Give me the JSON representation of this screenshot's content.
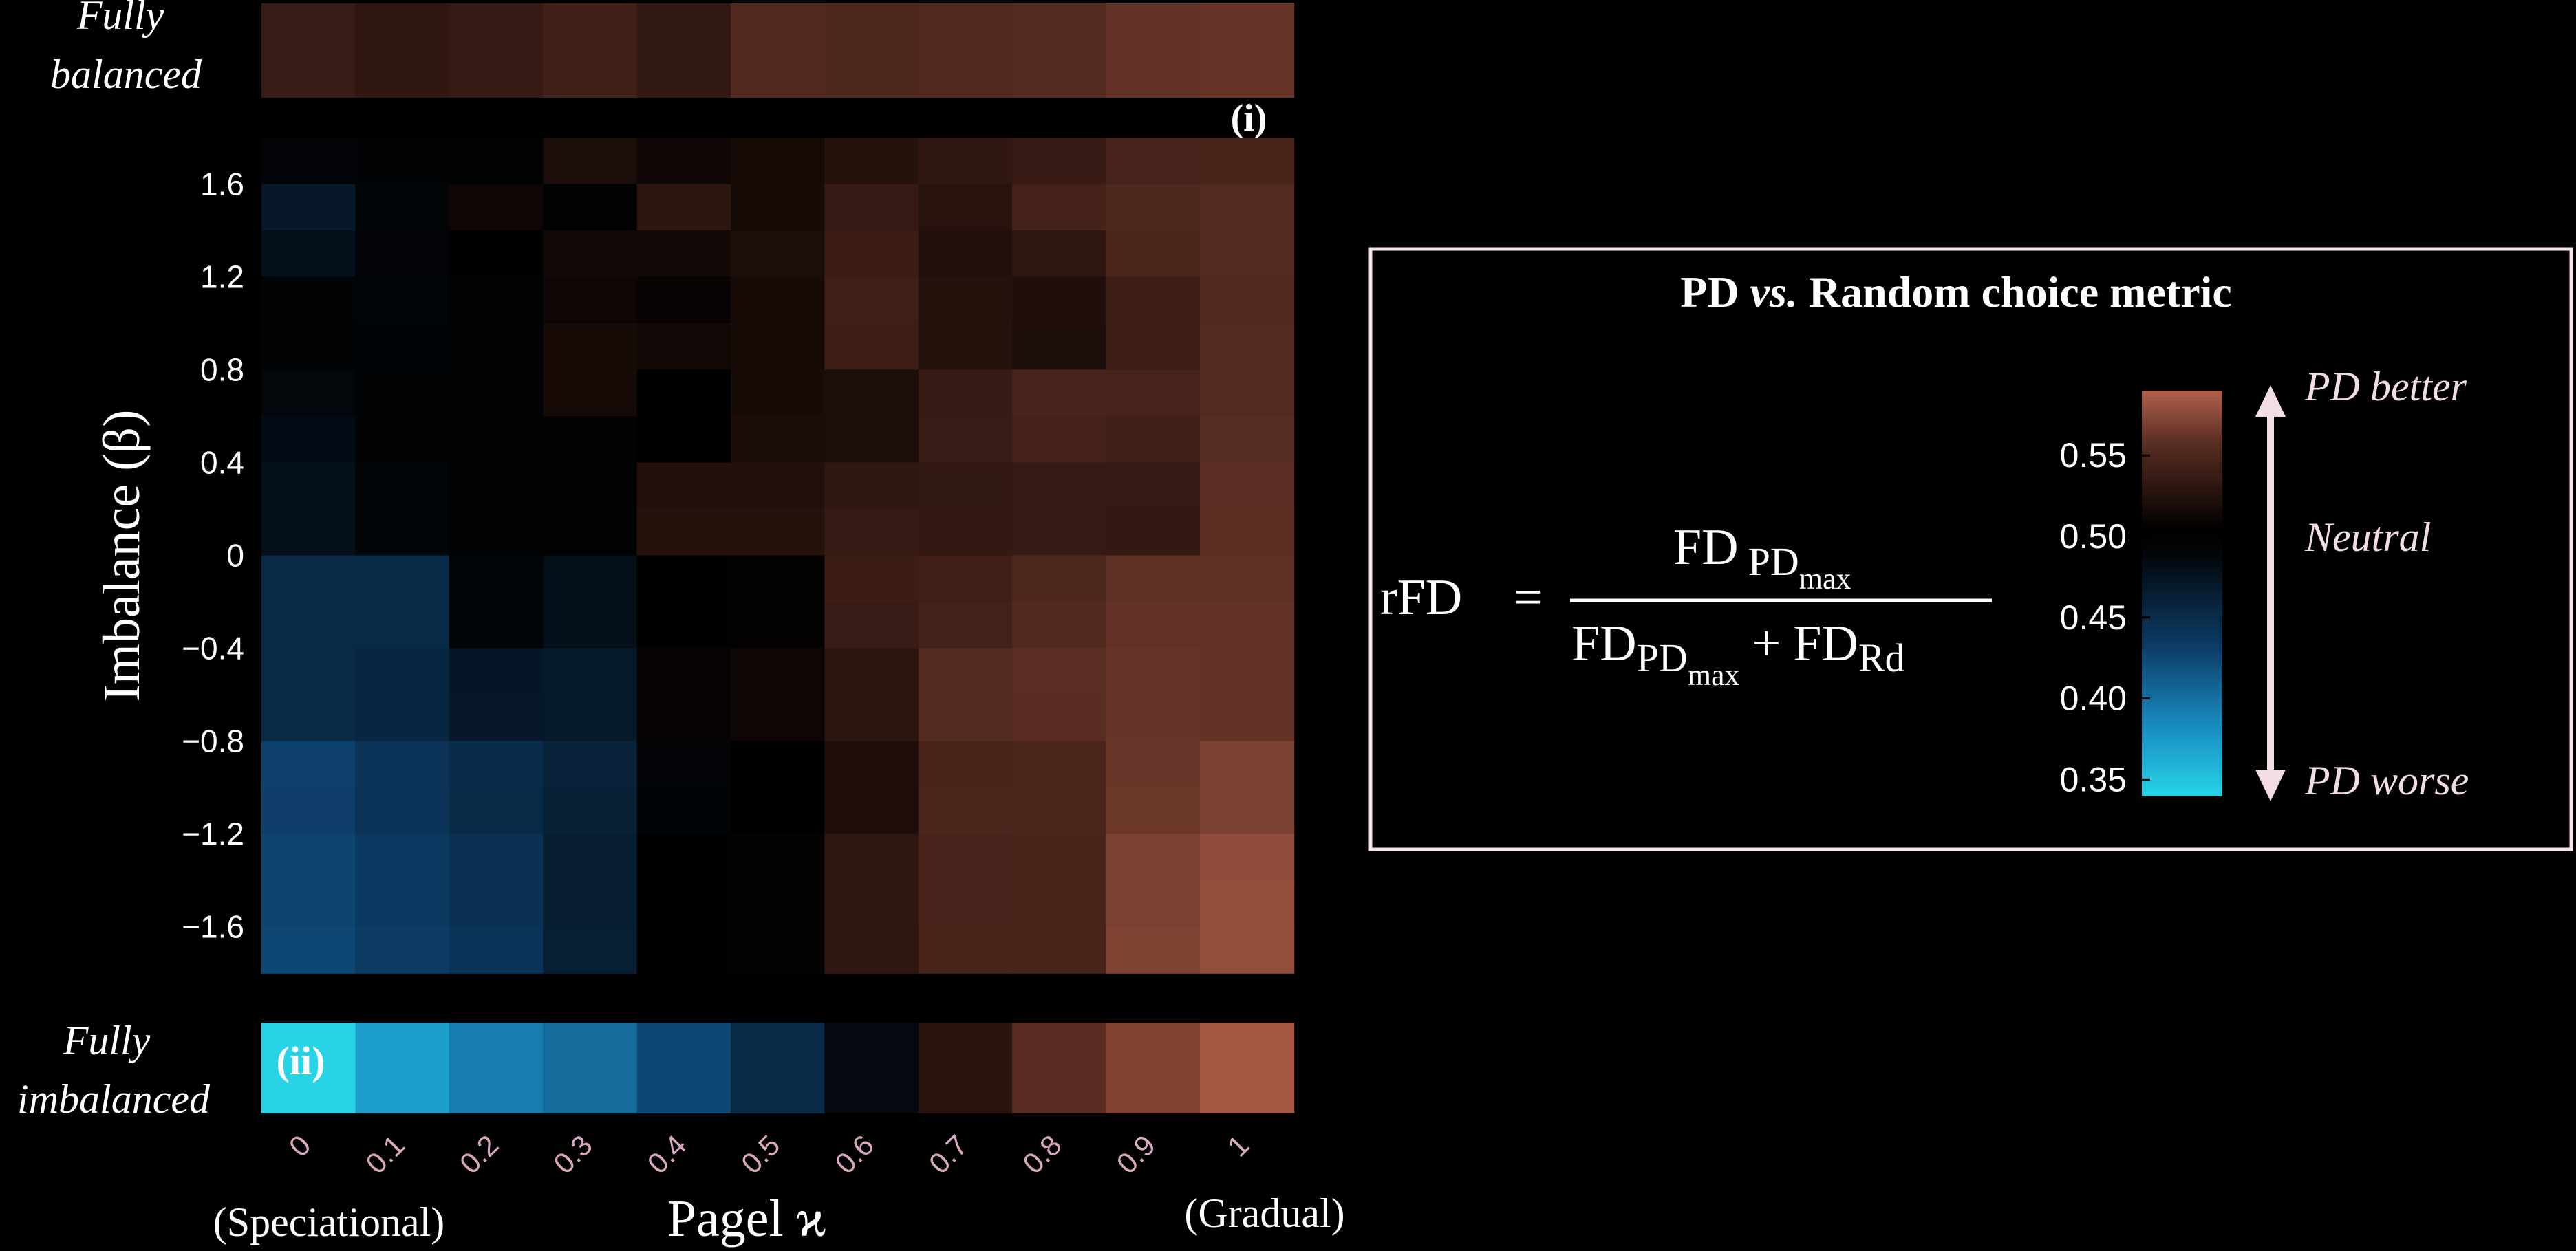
{
  "chart_data": {
    "type": "heatmap",
    "title": "",
    "xlabel": "Pagel ϰ",
    "xlabel_left_note": "(Speciational)",
    "xlabel_right_note": "(Gradual)",
    "ylabel": "Imbalance (β)",
    "x": [
      "0",
      "0.1",
      "0.2",
      "0.3",
      "0.4",
      "0.5",
      "0.6",
      "0.7",
      "0.8",
      "0.9",
      "1"
    ],
    "y_ticks": [
      "1.6",
      "1.2",
      "0.8",
      "0.4",
      "0",
      "−0.4",
      "−0.8",
      "−1.2",
      "−1.6"
    ],
    "y": [
      "1.8",
      "1.6",
      "1.4",
      "1.2",
      "1.0",
      "0.8",
      "0.6",
      "0.4",
      "0.2",
      "0",
      "−0.2",
      "−0.4",
      "−0.6",
      "−0.8",
      "−1.0",
      "−1.2",
      "−1.4",
      "−1.6"
    ],
    "colorbar": {
      "ticks": [
        "0.55",
        "0.50",
        "0.45",
        "0.40",
        "0.35"
      ],
      "range": [
        0.34,
        0.59
      ],
      "stops": [
        {
          "v": 0.34,
          "color": "#26d4e6"
        },
        {
          "v": 0.38,
          "color": "#1a90c4"
        },
        {
          "v": 0.43,
          "color": "#0d3f6b"
        },
        {
          "v": 0.49,
          "color": "#020508"
        },
        {
          "v": 0.505,
          "color": "#000000"
        },
        {
          "v": 0.53,
          "color": "#2d1510"
        },
        {
          "v": 0.56,
          "color": "#5e3024"
        },
        {
          "v": 0.59,
          "color": "#b2604a"
        }
      ]
    },
    "fully_balanced": {
      "label_line1": "Fully",
      "label_line2": "balanced",
      "tag": "(i)",
      "values": [
        0.537,
        0.531,
        0.535,
        0.542,
        0.533,
        0.552,
        0.55,
        0.552,
        0.554,
        0.561,
        0.563
      ]
    },
    "fully_imbalanced": {
      "label_line1": "Fully",
      "label_line2": "imbalanced",
      "tag": "(ii)",
      "values": [
        0.34,
        0.372,
        0.392,
        0.402,
        0.425,
        0.452,
        0.486,
        0.528,
        0.557,
        0.572,
        0.585
      ]
    },
    "matrix": [
      [
        0.492,
        0.496,
        0.5,
        0.52,
        0.514,
        0.518,
        0.526,
        0.532,
        0.536,
        0.545,
        0.547
      ],
      [
        0.47,
        0.49,
        0.512,
        0.5,
        0.53,
        0.518,
        0.535,
        0.527,
        0.544,
        0.55,
        0.553
      ],
      [
        0.478,
        0.492,
        0.505,
        0.515,
        0.515,
        0.52,
        0.539,
        0.523,
        0.531,
        0.549,
        0.554
      ],
      [
        0.497,
        0.49,
        0.5,
        0.512,
        0.51,
        0.518,
        0.541,
        0.526,
        0.522,
        0.54,
        0.552
      ],
      [
        0.497,
        0.494,
        0.5,
        0.518,
        0.515,
        0.518,
        0.54,
        0.526,
        0.521,
        0.54,
        0.553
      ],
      [
        0.488,
        0.496,
        0.5,
        0.518,
        0.503,
        0.518,
        0.52,
        0.536,
        0.546,
        0.545,
        0.554
      ],
      [
        0.483,
        0.496,
        0.5,
        0.508,
        0.504,
        0.519,
        0.52,
        0.537,
        0.544,
        0.542,
        0.556
      ],
      [
        0.48,
        0.49,
        0.5,
        0.5,
        0.524,
        0.524,
        0.532,
        0.533,
        0.536,
        0.535,
        0.558
      ],
      [
        0.48,
        0.49,
        0.5,
        0.5,
        0.526,
        0.526,
        0.535,
        0.534,
        0.536,
        0.534,
        0.559
      ],
      [
        0.452,
        0.452,
        0.49,
        0.48,
        0.503,
        0.507,
        0.539,
        0.541,
        0.55,
        0.56,
        0.56
      ],
      [
        0.452,
        0.452,
        0.49,
        0.48,
        0.503,
        0.507,
        0.537,
        0.543,
        0.552,
        0.561,
        0.562
      ],
      [
        0.452,
        0.456,
        0.472,
        0.468,
        0.509,
        0.512,
        0.53,
        0.553,
        0.558,
        0.563,
        0.562
      ],
      [
        0.452,
        0.456,
        0.47,
        0.468,
        0.509,
        0.512,
        0.53,
        0.553,
        0.557,
        0.563,
        0.562
      ],
      [
        0.43,
        0.442,
        0.45,
        0.46,
        0.492,
        0.505,
        0.522,
        0.547,
        0.548,
        0.564,
        0.57
      ],
      [
        0.432,
        0.442,
        0.452,
        0.462,
        0.494,
        0.505,
        0.522,
        0.548,
        0.548,
        0.565,
        0.57
      ],
      [
        0.427,
        0.436,
        0.444,
        0.465,
        0.506,
        0.508,
        0.531,
        0.546,
        0.547,
        0.57,
        0.578
      ],
      [
        0.427,
        0.436,
        0.444,
        0.465,
        0.506,
        0.508,
        0.531,
        0.546,
        0.547,
        0.57,
        0.579
      ],
      [
        0.425,
        0.434,
        0.442,
        0.463,
        0.506,
        0.508,
        0.531,
        0.547,
        0.547,
        0.571,
        0.579
      ]
    ]
  },
  "legend_box": {
    "title_pd": "PD",
    "title_vs": "vs.",
    "title_rest": "Random choice metric",
    "formula_lhs": "rFD",
    "formula_eq": "=",
    "num_fd": "FD",
    "num_sub": "PD",
    "num_subsub": "max",
    "den_fd1": "FD",
    "den_sub1": "PD",
    "den_subsub1": "max",
    "den_plus": "+",
    "den_fd2": "FD",
    "den_sub2": "Rd",
    "pd_better": "PD better",
    "neutral": "Neutral",
    "pd_worse": "PD worse",
    "arrow_color": "#f2dde4",
    "border_color": "#f5e6ea"
  }
}
